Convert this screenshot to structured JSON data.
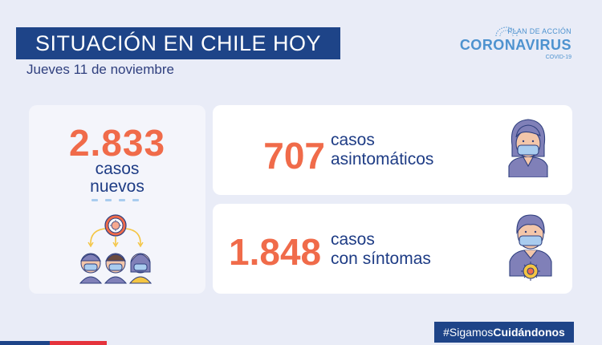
{
  "header": {
    "title": "SITUACIÓN EN CHILE HOY",
    "date": "Jueves 11 de noviembre"
  },
  "logo": {
    "plan": "PLAN DE ACCIÓN",
    "main": "CORONAVIRUS",
    "sub": "COVID-19",
    "icon": "government-emblem-icon"
  },
  "cards": {
    "new_cases": {
      "number": "2.833",
      "line1": "casos",
      "line2": "nuevos",
      "icon": "virus-spread-people-icon"
    },
    "asymptomatic": {
      "number": "707",
      "line1": "casos",
      "line2": "asintomáticos",
      "icon": "masked-woman-icon"
    },
    "symptomatic": {
      "number": "1.848",
      "line1": "casos",
      "line2": "con síntomas",
      "icon": "masked-man-virus-icon"
    }
  },
  "footer": {
    "hashtag_prefix": "#Sigamos",
    "hashtag_bold": "Cuidándonos"
  },
  "colors": {
    "navy": "#1e4488",
    "orange": "#f06b4a",
    "background": "#e9ecf7",
    "flag_red": "#e5333c"
  }
}
